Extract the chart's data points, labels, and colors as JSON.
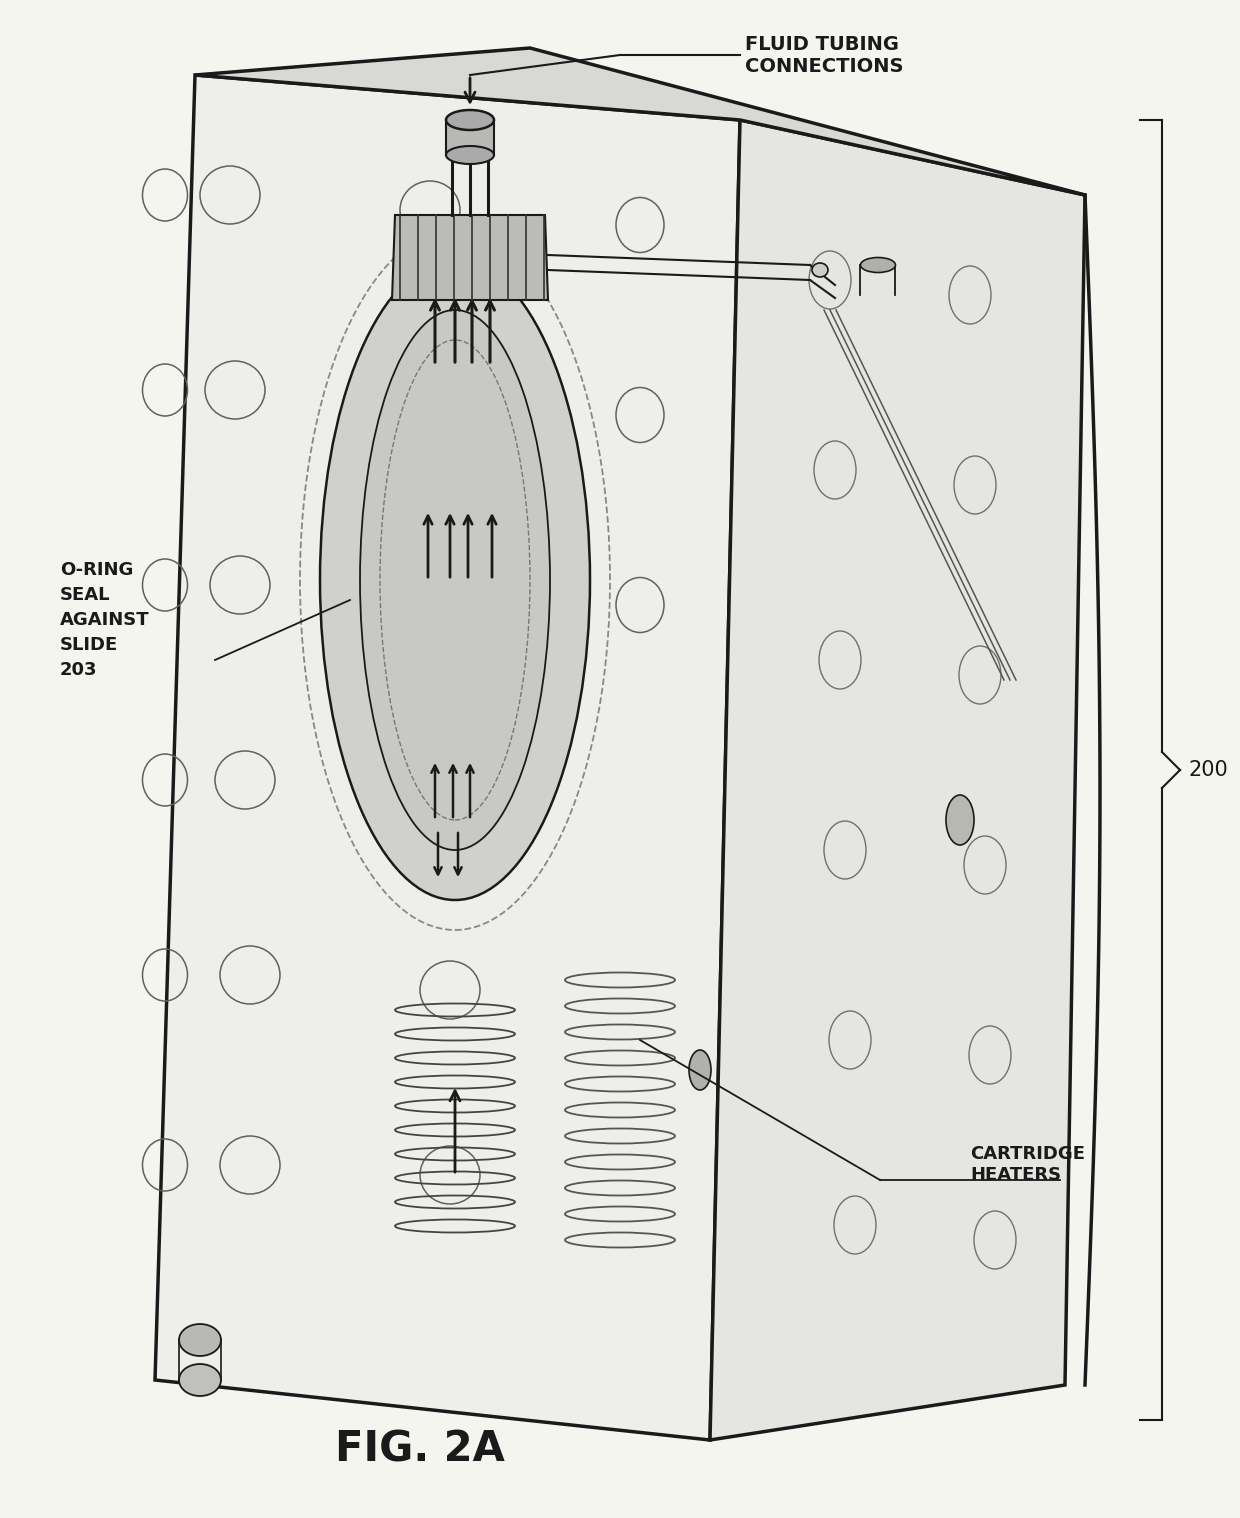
{
  "background_color": "#f5f5f0",
  "line_color": "#1a1a1a",
  "labels": {
    "fluid_tubing": "FLUID TUBING\nCONNECTIONS",
    "oring_seal": "O-RING\nSEAL\nAGAINST\nSLIDE\n203",
    "cartridge_heaters": "CARTRIDGE\nHEATERS",
    "ref_num": "200",
    "fig_label": "FIG. 2A"
  },
  "figsize": [
    12.4,
    15.18
  ],
  "dpi": 100
}
